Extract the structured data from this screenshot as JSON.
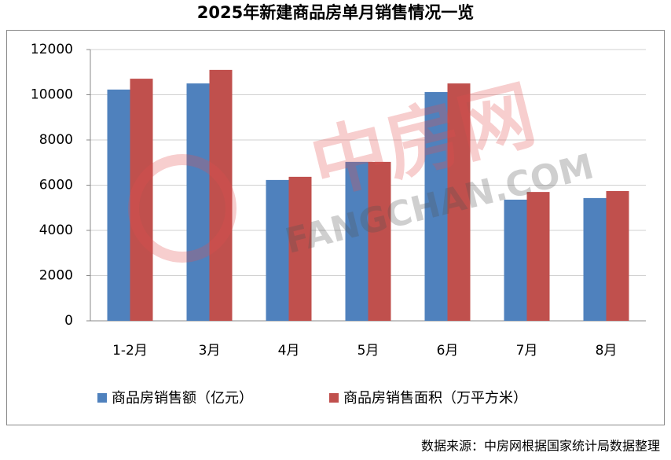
{
  "chart_data": {
    "type": "bar",
    "title": "2025年新建商品房单月销售情况一览",
    "categories": [
      "1-2月",
      "3月",
      "4月",
      "5月",
      "6月",
      "7月",
      "8月"
    ],
    "series": [
      {
        "name": "商品房销售额（亿元）",
        "color": "#4f81bd",
        "values": [
          10230,
          10500,
          6230,
          7030,
          10120,
          5360,
          5430
        ]
      },
      {
        "name": "商品房销售面积（万平方米）",
        "color": "#c0504d",
        "values": [
          10710,
          11100,
          6370,
          7030,
          10500,
          5700,
          5740
        ]
      }
    ],
    "ylim": [
      0,
      12000
    ],
    "yticks": [
      0,
      2000,
      4000,
      6000,
      8000,
      10000,
      12000
    ],
    "grid": true,
    "legend": "bottom",
    "source": "数据来源：中房网根据国家统计局数据整理",
    "watermark": [
      "中房网",
      "FANGCHAN.COM"
    ]
  }
}
